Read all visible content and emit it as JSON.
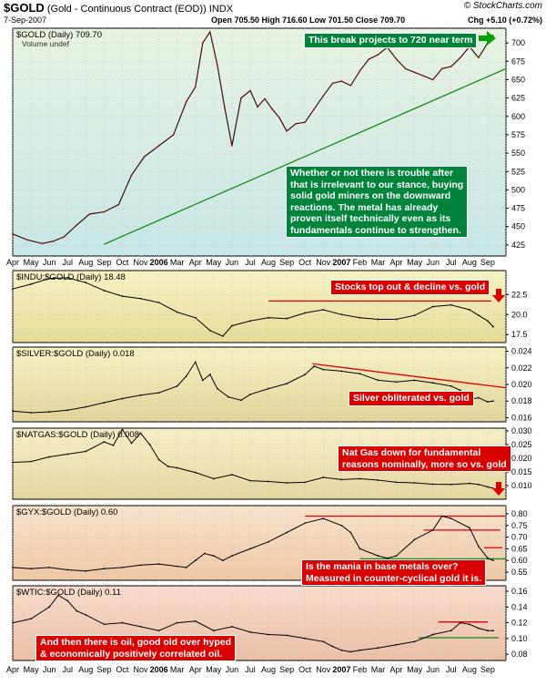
{
  "header": {
    "symbol": "$GOLD",
    "description": "(Gold - Continuous Contract (EOD))",
    "exchange": "INDX",
    "date": "7-Sep-2007",
    "ohlc": "Open 705.50   High 716.60   Low 701.50   Close 709.70",
    "change": "Chg +5.10 (+0.72%)",
    "logo": "© StockCharts.com"
  },
  "colors": {
    "price_line": "#000000",
    "price_down": "#cc0000",
    "trend_green": "#1a8a1a",
    "trend_red": "#e00000",
    "box_green": "#00843c",
    "box_red": "#d80000",
    "arrow_red": "#e00000",
    "arrow_green": "#00a000"
  },
  "annotations": {
    "gold_target": "This break projects to 720 near term",
    "gold_comment": [
      "Whether or not there is trouble after",
      "that is irrelevant to our stance, buying",
      "solid gold miners on the downward",
      "reactions. The metal has already",
      "proven itself technically even as its",
      "fundamentals continue to strengthen."
    ],
    "indu": "Stocks top out & decline vs. gold",
    "silver": "Silver obliterated vs. gold",
    "natgas": [
      "Nat Gas down for fundamental",
      "reasons nominally, more so vs. gold"
    ],
    "gyx": [
      "Is the mania in base metals over?",
      "Measured in counter-cyclical gold it is."
    ],
    "wtic": [
      "And then there is oil, good old over hyped",
      "& economically positively correlated oil."
    ]
  },
  "x_axis": {
    "labels": [
      "Apr",
      "May",
      "Jun",
      "Jul",
      "Aug",
      "Sep",
      "Oct",
      "Nov",
      "2006",
      "Mar",
      "Apr",
      "May",
      "Jun",
      "Jul",
      "Aug",
      "Sep",
      "Oct",
      "Nov",
      "2007",
      "Feb",
      "Mar",
      "Apr",
      "May",
      "Jun",
      "Jul",
      "Aug",
      "Sep"
    ],
    "bold": [
      "2006",
      "2007"
    ]
  },
  "chart_data": [
    {
      "type": "line",
      "title": "$GOLD (Daily) 709.70",
      "subtitle": "Volume undef",
      "ylim": [
        410,
        720
      ],
      "yticks": [
        425,
        450,
        475,
        500,
        525,
        550,
        575,
        600,
        625,
        650,
        675,
        700
      ],
      "series": [
        {
          "name": "$GOLD (Daily)",
          "x": [
            0,
            0.8,
            1.6,
            2.2,
            2.8,
            3.5,
            4.2,
            5,
            5.8,
            6.5,
            7.2,
            8,
            8.8,
            9.5,
            10,
            10.4,
            10.8,
            11.2,
            11.6,
            12,
            12.5,
            13,
            13.4,
            13.8,
            14.2,
            14.6,
            15,
            15.5,
            16,
            16.5,
            17,
            17.5,
            18,
            18.5,
            19,
            19.5,
            20,
            20.5,
            21,
            21.5,
            22,
            22.5,
            23,
            23.5,
            24,
            24.5,
            25,
            25.5,
            26,
            26.3
          ],
          "y": [
            440,
            432,
            427,
            430,
            436,
            452,
            467,
            470,
            480,
            520,
            545,
            560,
            575,
            620,
            640,
            700,
            715,
            670,
            612,
            560,
            625,
            635,
            613,
            624,
            610,
            598,
            580,
            590,
            592,
            610,
            628,
            645,
            648,
            642,
            662,
            678,
            684,
            694,
            678,
            665,
            660,
            655,
            650,
            665,
            668,
            680,
            695,
            680,
            700,
            710
          ]
        }
      ],
      "trendlines": [
        {
          "color": "green",
          "x": [
            5,
            27
          ],
          "y": [
            426,
            665
          ]
        }
      ]
    },
    {
      "type": "line",
      "title": "$INDU:$GOLD (Daily) 18.48",
      "ylim": [
        16.5,
        25.5
      ],
      "yticks": [
        17.5,
        20.0,
        22.5
      ],
      "series": [
        {
          "name": "$INDU:$GOLD (Daily)",
          "x": [
            0,
            1,
            2,
            3,
            4,
            5,
            6,
            7,
            8,
            9,
            10,
            10.8,
            11.5,
            12,
            13,
            14,
            15,
            16,
            17,
            18,
            19,
            20,
            21,
            22,
            23,
            24,
            25,
            25.5,
            26,
            26.3
          ],
          "y": [
            23.2,
            23.8,
            24.5,
            24.6,
            24.0,
            23.0,
            22.3,
            22.0,
            21.5,
            20.3,
            19.6,
            18.0,
            17.3,
            18.6,
            19.2,
            19.6,
            19.5,
            20.2,
            20.6,
            20.0,
            19.6,
            19.4,
            19.4,
            19.9,
            21.0,
            21.2,
            20.6,
            19.9,
            19.2,
            18.48
          ]
        }
      ],
      "trendlines": [
        {
          "color": "red",
          "x": [
            14,
            26.2
          ],
          "y": [
            21.7,
            21.7
          ]
        }
      ]
    },
    {
      "type": "line",
      "title": "$SILVER:$GOLD (Daily) 0.018",
      "ylim": [
        0.0155,
        0.0245
      ],
      "yticks": [
        0.016,
        0.018,
        0.02,
        0.022,
        0.024
      ],
      "series": [
        {
          "name": "$SILVER:$GOLD (Daily)",
          "x": [
            0,
            1,
            2,
            3,
            4,
            5,
            6,
            7,
            8,
            9,
            9.5,
            10,
            10.4,
            10.8,
            11.2,
            11.8,
            12.5,
            13,
            14,
            15,
            16,
            16.5,
            17,
            18,
            19,
            20,
            21,
            22,
            23,
            24,
            24.5,
            25,
            25.5,
            26,
            26.3
          ],
          "y": [
            0.0168,
            0.0166,
            0.0167,
            0.0169,
            0.0173,
            0.0178,
            0.0183,
            0.0187,
            0.019,
            0.0198,
            0.021,
            0.0227,
            0.0205,
            0.0212,
            0.0195,
            0.0185,
            0.0181,
            0.0188,
            0.0195,
            0.0201,
            0.0212,
            0.0222,
            0.0218,
            0.0216,
            0.0213,
            0.0205,
            0.0203,
            0.0205,
            0.0202,
            0.0198,
            0.0193,
            0.0182,
            0.0184,
            0.0179,
            0.018
          ]
        }
      ],
      "trendlines": [
        {
          "color": "red",
          "x": [
            16.4,
            27
          ],
          "y": [
            0.0225,
            0.0196
          ]
        }
      ]
    },
    {
      "type": "line",
      "title": "$NATGAS:$GOLD (Daily) 0.008",
      "ylim": [
        0.005,
        0.031
      ],
      "yticks": [
        0.01,
        0.015,
        0.02,
        0.025,
        0.03
      ],
      "series": [
        {
          "name": "$NATGAS:$GOLD (Daily)",
          "x": [
            0,
            1,
            2,
            3,
            4,
            5,
            5.5,
            6,
            6.5,
            7,
            7.5,
            8,
            8.5,
            9,
            10,
            11,
            12,
            13,
            14,
            15,
            16,
            17,
            18,
            19,
            20,
            21,
            22,
            23,
            24,
            25,
            25.5,
            26,
            26.3
          ],
          "y": [
            0.0185,
            0.0188,
            0.0205,
            0.0215,
            0.0225,
            0.026,
            0.0247,
            0.0305,
            0.0255,
            0.0292,
            0.025,
            0.0195,
            0.017,
            0.0165,
            0.0148,
            0.0125,
            0.014,
            0.0118,
            0.0115,
            0.011,
            0.0112,
            0.013,
            0.0122,
            0.0125,
            0.012,
            0.0112,
            0.011,
            0.0105,
            0.0104,
            0.0108,
            0.0104,
            0.0095,
            0.009
          ]
        }
      ],
      "trendlines": []
    },
    {
      "type": "line",
      "title": "$GYX:$GOLD (Daily) 0.60",
      "ylim": [
        0.515,
        0.835
      ],
      "yticks": [
        0.55,
        0.6,
        0.65,
        0.7,
        0.75,
        0.8
      ],
      "series": [
        {
          "name": "$GYX:$GOLD (Daily)",
          "x": [
            0,
            1,
            2,
            3,
            4,
            5,
            6,
            7,
            8,
            9,
            9.5,
            10,
            10.5,
            11,
            11.5,
            12,
            13,
            14,
            15,
            16,
            17,
            18,
            18.5,
            19,
            20,
            20.5,
            21,
            22,
            23,
            23.5,
            24,
            25,
            25.5,
            26,
            26.3
          ],
          "y": [
            0.57,
            0.565,
            0.57,
            0.56,
            0.555,
            0.565,
            0.57,
            0.58,
            0.585,
            0.575,
            0.57,
            0.6,
            0.63,
            0.62,
            0.6,
            0.62,
            0.65,
            0.68,
            0.72,
            0.76,
            0.78,
            0.75,
            0.72,
            0.65,
            0.62,
            0.61,
            0.62,
            0.69,
            0.73,
            0.79,
            0.78,
            0.74,
            0.66,
            0.61,
            0.6
          ]
        }
      ],
      "trendlines": [
        {
          "color": "red",
          "x": [
            16,
            27
          ],
          "y": [
            0.79,
            0.79
          ]
        },
        {
          "color": "red",
          "x": [
            22.5,
            26.7
          ],
          "y": [
            0.73,
            0.73
          ]
        },
        {
          "color": "red",
          "x": [
            25.8,
            26.8
          ],
          "y": [
            0.655,
            0.655
          ]
        },
        {
          "color": "green",
          "x": [
            19,
            27
          ],
          "y": [
            0.607,
            0.607
          ]
        }
      ]
    },
    {
      "type": "line",
      "title": "$WTIC:$GOLD (Daily) 0.11",
      "ylim": [
        0.072,
        0.167
      ],
      "yticks": [
        0.08,
        0.1,
        0.12,
        0.14,
        0.16
      ],
      "series": [
        {
          "name": "$WTIC:$GOLD (Daily)",
          "x": [
            0,
            1,
            2,
            2.5,
            3,
            3.5,
            4,
            5,
            6,
            7,
            8,
            9,
            10,
            11,
            12,
            13,
            14,
            15,
            16,
            17,
            17.5,
            18,
            18.5,
            19,
            20,
            21,
            22,
            23,
            24,
            24.5,
            25,
            25.5,
            26,
            26.3
          ],
          "y": [
            0.12,
            0.125,
            0.14,
            0.155,
            0.148,
            0.135,
            0.13,
            0.118,
            0.12,
            0.115,
            0.11,
            0.12,
            0.122,
            0.11,
            0.115,
            0.108,
            0.105,
            0.104,
            0.1,
            0.096,
            0.09,
            0.085,
            0.083,
            0.085,
            0.088,
            0.092,
            0.096,
            0.105,
            0.11,
            0.12,
            0.118,
            0.113,
            0.11,
            0.11
          ]
        }
      ],
      "trendlines": [
        {
          "color": "red",
          "x": [
            23.3,
            26
          ],
          "y": [
            0.121,
            0.121
          ]
        },
        {
          "color": "green",
          "x": [
            22.2,
            26.6
          ],
          "y": [
            0.101,
            0.101
          ]
        }
      ]
    }
  ]
}
